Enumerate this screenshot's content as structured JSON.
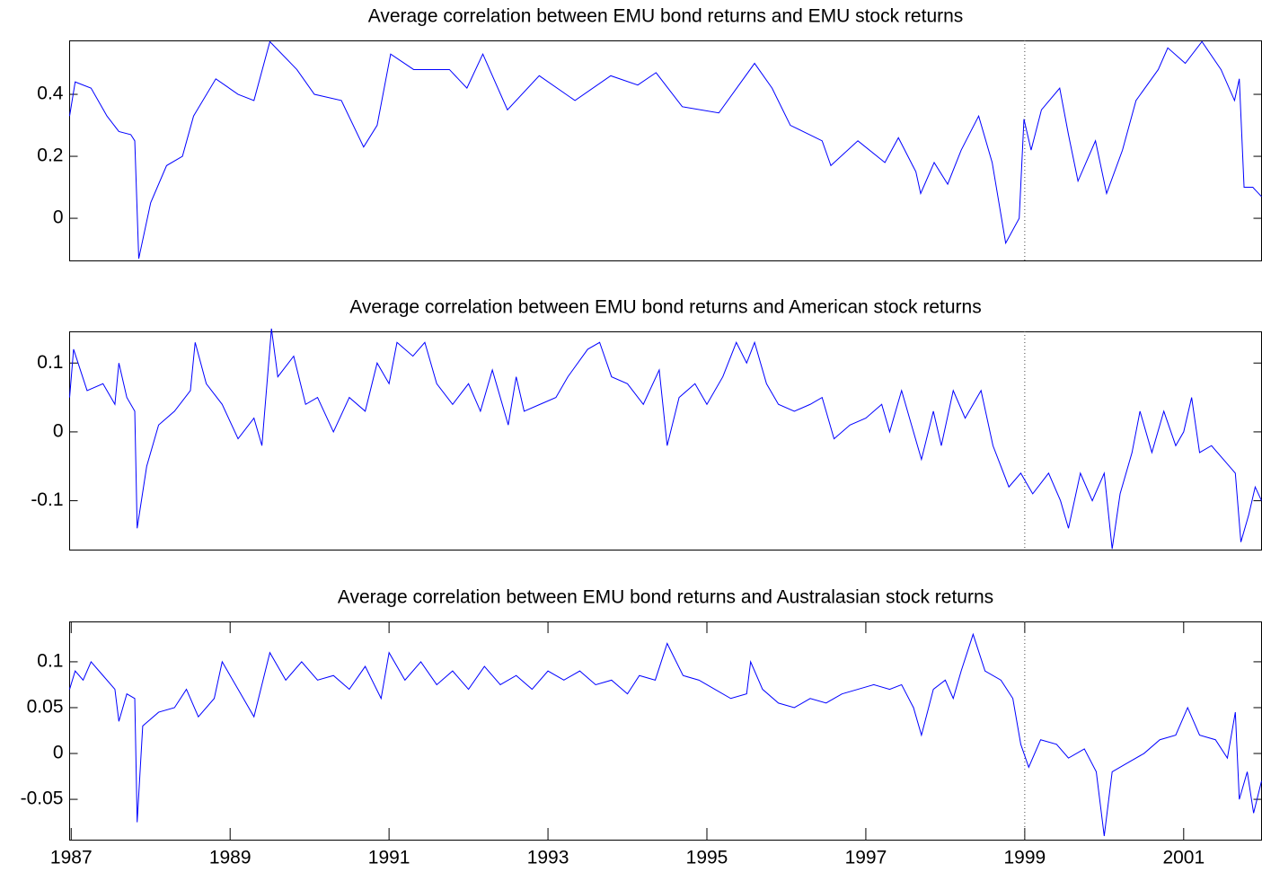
{
  "chart_data": [
    {
      "type": "line",
      "title": "Average correlation between EMU bond returns and EMU stock returns",
      "xlim": [
        1986.98,
        2001.98
      ],
      "ylim": [
        -0.136,
        0.574
      ],
      "yticks": [
        0,
        0.2,
        0.4
      ],
      "vline": 1999,
      "series": [
        {
          "color": "#0000ff",
          "x": [
            1986.98,
            1987.05,
            1987.25,
            1987.45,
            1987.6,
            1987.75,
            1987.8,
            1987.85,
            1988.0,
            1988.2,
            1988.4,
            1988.54,
            1988.82,
            1989.1,
            1989.3,
            1989.5,
            1989.84,
            1990.06,
            1990.4,
            1990.68,
            1990.85,
            1991.02,
            1991.31,
            1991.76,
            1991.98,
            1992.18,
            1992.49,
            1992.89,
            1993.34,
            1993.79,
            1994.13,
            1994.36,
            1994.69,
            1995.15,
            1995.6,
            1995.82,
            1996.05,
            1996.45,
            1996.56,
            1996.9,
            1997.24,
            1997.41,
            1997.63,
            1997.69,
            1997.86,
            1998.03,
            1998.2,
            1998.42,
            1998.59,
            1998.76,
            1998.93,
            1998.99,
            1999.08,
            1999.21,
            1999.44,
            1999.55,
            1999.67,
            1999.89,
            2000.03,
            2000.23,
            2000.4,
            2000.68,
            2000.8,
            2001.02,
            2001.23,
            2001.47,
            2001.64,
            2001.7,
            2001.76,
            2001.87,
            2001.98
          ],
          "values": [
            0.33,
            0.44,
            0.42,
            0.33,
            0.28,
            0.27,
            0.25,
            -0.13,
            0.05,
            0.17,
            0.2,
            0.33,
            0.45,
            0.4,
            0.38,
            0.57,
            0.48,
            0.4,
            0.38,
            0.23,
            0.3,
            0.53,
            0.48,
            0.48,
            0.42,
            0.53,
            0.35,
            0.46,
            0.38,
            0.46,
            0.43,
            0.47,
            0.36,
            0.34,
            0.5,
            0.42,
            0.3,
            0.25,
            0.17,
            0.25,
            0.18,
            0.26,
            0.15,
            0.08,
            0.18,
            0.11,
            0.22,
            0.33,
            0.18,
            -0.08,
            0.0,
            0.32,
            0.22,
            0.35,
            0.42,
            0.27,
            0.12,
            0.25,
            0.08,
            0.22,
            0.38,
            0.48,
            0.55,
            0.5,
            0.57,
            0.48,
            0.38,
            0.45,
            0.1,
            0.1,
            0.07
          ]
        }
      ]
    },
    {
      "type": "line",
      "title": "Average correlation between EMU bond returns and American stock returns",
      "xlim": [
        1986.98,
        2001.98
      ],
      "ylim": [
        -0.171,
        0.146
      ],
      "yticks": [
        -0.1,
        0,
        0.1
      ],
      "vline": 1999,
      "series": [
        {
          "color": "#0000ff",
          "x": [
            1986.98,
            1987.03,
            1987.2,
            1987.4,
            1987.55,
            1987.6,
            1987.7,
            1987.8,
            1987.83,
            1987.95,
            1988.1,
            1988.3,
            1988.5,
            1988.56,
            1988.7,
            1988.9,
            1989.1,
            1989.3,
            1989.4,
            1989.52,
            1989.6,
            1989.8,
            1989.95,
            1990.1,
            1990.3,
            1990.5,
            1990.7,
            1990.85,
            1991.0,
            1991.1,
            1991.3,
            1991.45,
            1991.6,
            1991.8,
            1992.0,
            1992.15,
            1992.3,
            1992.5,
            1992.6,
            1992.7,
            1992.9,
            1993.1,
            1993.25,
            1993.5,
            1993.65,
            1993.8,
            1994.0,
            1994.2,
            1994.4,
            1994.5,
            1994.65,
            1994.85,
            1995.0,
            1995.2,
            1995.37,
            1995.5,
            1995.6,
            1995.75,
            1995.9,
            1996.1,
            1996.3,
            1996.45,
            1996.6,
            1996.8,
            1997.0,
            1997.2,
            1997.3,
            1997.45,
            1997.55,
            1997.7,
            1997.85,
            1997.95,
            1998.1,
            1998.25,
            1998.45,
            1998.6,
            1998.8,
            1998.95,
            1999.1,
            1999.3,
            1999.45,
            1999.55,
            1999.7,
            1999.85,
            2000.0,
            2000.1,
            2000.2,
            2000.35,
            2000.45,
            2000.6,
            2000.75,
            2000.9,
            2001.0,
            2001.1,
            2001.2,
            2001.35,
            2001.5,
            2001.65,
            2001.72,
            2001.82,
            2001.9,
            2001.98
          ],
          "values": [
            0.05,
            0.12,
            0.06,
            0.07,
            0.04,
            0.1,
            0.05,
            0.03,
            -0.14,
            -0.05,
            0.01,
            0.03,
            0.06,
            0.13,
            0.07,
            0.04,
            -0.01,
            0.02,
            -0.02,
            0.15,
            0.08,
            0.11,
            0.04,
            0.05,
            0.0,
            0.05,
            0.03,
            0.1,
            0.07,
            0.13,
            0.11,
            0.13,
            0.07,
            0.04,
            0.07,
            0.03,
            0.09,
            0.01,
            0.08,
            0.03,
            0.04,
            0.05,
            0.08,
            0.12,
            0.13,
            0.08,
            0.07,
            0.04,
            0.09,
            -0.02,
            0.05,
            0.07,
            0.04,
            0.08,
            0.13,
            0.1,
            0.13,
            0.07,
            0.04,
            0.03,
            0.04,
            0.05,
            -0.01,
            0.01,
            0.02,
            0.04,
            0.0,
            0.06,
            0.02,
            -0.04,
            0.03,
            -0.02,
            0.06,
            0.02,
            0.06,
            -0.02,
            -0.08,
            -0.06,
            -0.09,
            -0.06,
            -0.1,
            -0.14,
            -0.06,
            -0.1,
            -0.06,
            -0.17,
            -0.09,
            -0.03,
            0.03,
            -0.03,
            0.03,
            -0.02,
            0.0,
            0.05,
            -0.03,
            -0.02,
            -0.04,
            -0.06,
            -0.16,
            -0.12,
            -0.08,
            -0.1
          ]
        }
      ]
    },
    {
      "type": "line",
      "title": "Average correlation between EMU bond returns and Australasian stock returns",
      "xlim": [
        1986.98,
        2001.98
      ],
      "ylim": [
        -0.094,
        0.144
      ],
      "yticks": [
        -0.05,
        0,
        0.05,
        0.1
      ],
      "vline": 1999,
      "xticks": [
        1987,
        1989,
        1991,
        1993,
        1995,
        1997,
        1999,
        2001
      ],
      "series": [
        {
          "color": "#0000ff",
          "x": [
            1986.98,
            1987.05,
            1987.15,
            1987.25,
            1987.4,
            1987.55,
            1987.6,
            1987.7,
            1987.8,
            1987.83,
            1987.9,
            1988.1,
            1988.3,
            1988.45,
            1988.6,
            1988.8,
            1988.9,
            1989.1,
            1989.3,
            1989.5,
            1989.7,
            1989.9,
            1990.1,
            1990.3,
            1990.5,
            1990.7,
            1990.9,
            1991.0,
            1991.2,
            1991.4,
            1991.6,
            1991.8,
            1992.0,
            1992.2,
            1992.4,
            1992.6,
            1992.8,
            1993.0,
            1993.2,
            1993.4,
            1993.6,
            1993.8,
            1994.0,
            1994.15,
            1994.35,
            1994.5,
            1994.7,
            1994.9,
            1995.1,
            1995.3,
            1995.5,
            1995.55,
            1995.7,
            1995.9,
            1996.1,
            1996.3,
            1996.5,
            1996.7,
            1996.9,
            1997.1,
            1997.3,
            1997.45,
            1997.6,
            1997.7,
            1997.85,
            1998.0,
            1998.1,
            1998.2,
            1998.35,
            1998.5,
            1998.7,
            1998.85,
            1998.95,
            1999.05,
            1999.2,
            1999.4,
            1999.55,
            1999.75,
            1999.9,
            2000.0,
            2000.1,
            2000.3,
            2000.5,
            2000.7,
            2000.9,
            2001.05,
            2001.2,
            2001.4,
            2001.55,
            2001.65,
            2001.7,
            2001.8,
            2001.88,
            2001.98
          ],
          "values": [
            0.07,
            0.09,
            0.08,
            0.1,
            0.085,
            0.07,
            0.035,
            0.065,
            0.06,
            -0.075,
            0.03,
            0.045,
            0.05,
            0.07,
            0.04,
            0.06,
            0.1,
            0.07,
            0.04,
            0.11,
            0.08,
            0.1,
            0.08,
            0.085,
            0.07,
            0.095,
            0.06,
            0.11,
            0.08,
            0.1,
            0.075,
            0.09,
            0.07,
            0.095,
            0.075,
            0.085,
            0.07,
            0.09,
            0.08,
            0.09,
            0.075,
            0.08,
            0.065,
            0.085,
            0.08,
            0.12,
            0.085,
            0.08,
            0.07,
            0.06,
            0.065,
            0.1,
            0.07,
            0.055,
            0.05,
            0.06,
            0.055,
            0.065,
            0.07,
            0.075,
            0.07,
            0.075,
            0.05,
            0.02,
            0.07,
            0.08,
            0.06,
            0.09,
            0.13,
            0.09,
            0.08,
            0.06,
            0.01,
            -0.015,
            0.015,
            0.01,
            -0.005,
            0.005,
            -0.02,
            -0.09,
            -0.02,
            -0.01,
            0.0,
            0.015,
            0.02,
            0.05,
            0.02,
            0.015,
            -0.005,
            0.045,
            -0.05,
            -0.02,
            -0.065,
            -0.03
          ]
        }
      ]
    }
  ]
}
